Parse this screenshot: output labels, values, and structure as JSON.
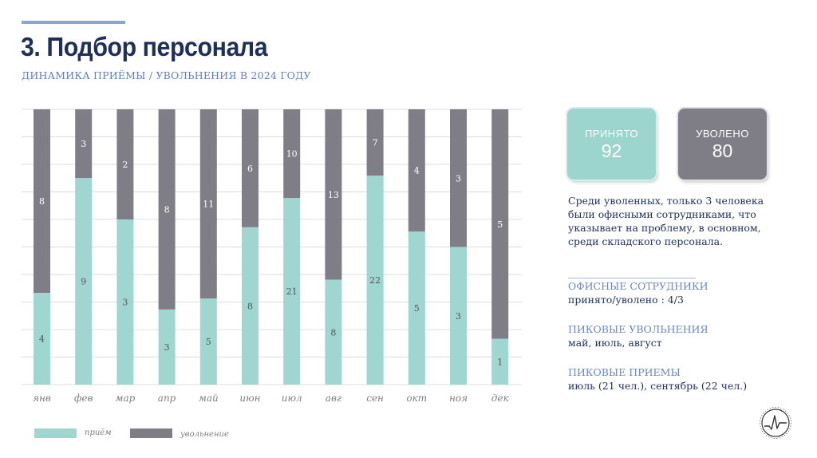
{
  "header": {
    "title": "3. Подбор персонала",
    "subtitle": "ДИНАМИКА ПРИЁМЫ / УВОЛЬНЕНИЯ В 2024 ГОДУ"
  },
  "kpis": {
    "hired_label": "ПРИНЯТО",
    "hired_value": "92",
    "fired_label": "УВОЛЕНО",
    "fired_value": "80"
  },
  "summary": "Среди уволенных, только 3 человека были офисными сотрудниками, что указывает на проблему, в основном, среди складского персонала.",
  "stats": [
    {
      "heading": "ОФИСНЫЕ СОТРУДНИКИ",
      "value": "принято/уволено : 4/3"
    },
    {
      "heading": "ПИКОВЫЕ УВОЛЬНЕНИЯ",
      "value": "май, июль, август"
    },
    {
      "heading": "ПИКОВЫЕ ПРИЕМЫ",
      "value": "июль (21 чел.), сентябрь (22 чел.)"
    }
  ],
  "colors": {
    "hire": "#9fd6cf",
    "fire": "#7f7e86",
    "title": "#1f2f5c",
    "accent": "#8ba4d6"
  },
  "chart_data": {
    "type": "bar",
    "stacked": true,
    "normalized_percent": true,
    "categories": [
      "янв",
      "фев",
      "мар",
      "апр",
      "май",
      "июн",
      "июл",
      "авг",
      "сен",
      "окт",
      "ноя",
      "дек"
    ],
    "series": [
      {
        "name": "приём",
        "values": [
          4,
          9,
          3,
          3,
          5,
          8,
          21,
          8,
          22,
          5,
          3,
          1
        ]
      },
      {
        "name": "увольнение",
        "values": [
          8,
          3,
          2,
          8,
          11,
          6,
          10,
          13,
          7,
          4,
          3,
          5
        ]
      }
    ],
    "grid": true,
    "legend_position": "bottom-left"
  }
}
